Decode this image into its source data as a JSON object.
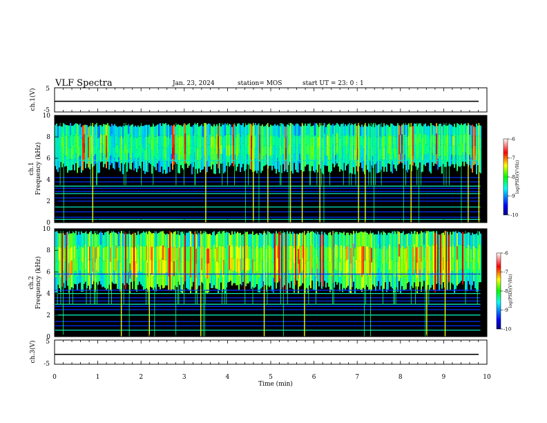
{
  "header": {
    "title": "VLF Spectra",
    "date": "Jan. 23, 2024",
    "station": "station= MOS",
    "start": "start  UT =   23: 0  : 1"
  },
  "chart_data": [
    {
      "type": "line",
      "panel": "ch1-voltage",
      "ylabel": "ch.1(V)",
      "ylim": [
        -5,
        5
      ],
      "yticks": [
        "5",
        "-5"
      ],
      "xlim": [
        0,
        10
      ],
      "series": [
        {
          "values_const": -0.6
        }
      ]
    },
    {
      "type": "heatmap",
      "panel": "ch1-spectrogram",
      "ylabel": "ch.1\nFrequency (kHz)",
      "ylabel_lines": [
        "ch.1",
        "Frequency (kHz)"
      ],
      "ylim": [
        0,
        10
      ],
      "yticks": [
        "0",
        "2",
        "4",
        "6",
        "8",
        "10"
      ],
      "xlim": [
        0,
        10
      ],
      "data_end_min": 9.85,
      "colorbar": {
        "label": "log(PSD)(V²/Hz)",
        "range": [
          -10,
          -6
        ],
        "ticks": [
          "-6",
          "-7",
          "-8",
          "-9",
          "-10"
        ]
      },
      "noise_band_khz": [
        4.5,
        9.3
      ],
      "carrier_lines_khz": [
        0.3,
        0.5,
        1.0,
        1.45,
        2.0,
        2.3,
        2.7,
        2.9,
        3.2,
        3.4,
        3.8,
        4.2,
        5.8
      ]
    },
    {
      "type": "heatmap",
      "panel": "ch2-spectrogram",
      "ylabel": "ch.2\nFrequency (kHz)",
      "ylabel_lines": [
        "ch.2",
        "Frequency (kHz)"
      ],
      "ylim": [
        0,
        10
      ],
      "yticks": [
        "0",
        "2",
        "4",
        "6",
        "8",
        "10"
      ],
      "xlim": [
        0,
        10
      ],
      "data_end_min": 9.85,
      "colorbar": {
        "label": "log(PSD)(V²/Hz)",
        "range": [
          -10,
          -6
        ],
        "ticks": [
          "-6",
          "-7",
          "-8",
          "-9",
          "-10"
        ]
      },
      "noise_band_khz": [
        4.0,
        9.8
      ],
      "carrier_lines_khz": [
        0.6,
        1.0,
        1.4,
        2.0,
        2.5,
        2.8,
        3.0,
        3.3,
        3.6,
        4.0,
        4.3,
        5.8
      ]
    },
    {
      "type": "line",
      "panel": "ch3-voltage",
      "ylabel": "ch.3(V)",
      "ylim": [
        -5,
        5
      ],
      "yticks": [
        "5",
        "-5"
      ],
      "xlim": [
        0,
        10
      ],
      "series": [
        {
          "values_const": -0.9
        }
      ]
    }
  ],
  "xaxis": {
    "label": "Time (min)",
    "ticks": [
      "0",
      "1",
      "2",
      "3",
      "4",
      "5",
      "6",
      "7",
      "8",
      "9",
      "10"
    ]
  }
}
